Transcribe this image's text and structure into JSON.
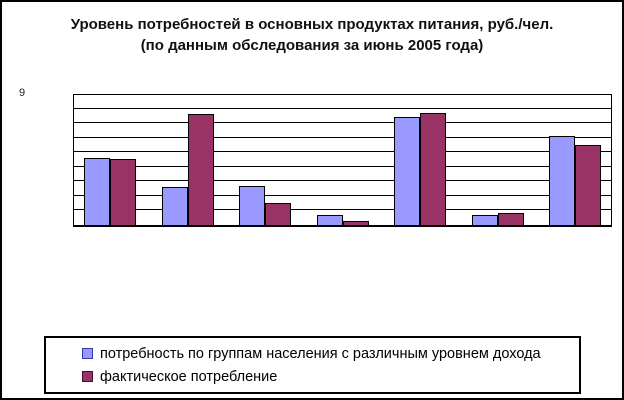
{
  "title": {
    "line1": "Уровень потребностей в основных продуктах питания, руб./чел.",
    "line2": "(по данным обследования за июнь 2005 года)"
  },
  "y_axis": {
    "top_label": "9"
  },
  "legend": {
    "items": [
      {
        "label": "потребность по группам населения с различным уровнем дохода",
        "color": "#9999FF"
      },
      {
        "label": "фактическое потребление",
        "color": "#993366"
      }
    ]
  },
  "chart_data": {
    "type": "bar",
    "title": "Уровень потребностей в основных продуктах питания, руб./чел. (по данным обследования за июнь 2005 года)",
    "categories": [
      "",
      "",
      "",
      "",
      "",
      "",
      ""
    ],
    "series": [
      {
        "name": "потребность по группам населения с различным уровнем дохода",
        "color": "#9999FF",
        "values": [
          4.6,
          2.6,
          2.7,
          0.7,
          7.4,
          0.7,
          6.1
        ]
      },
      {
        "name": "фактическое потребление",
        "color": "#993366",
        "values": [
          4.5,
          7.6,
          1.5,
          0.3,
          7.7,
          0.8,
          5.5
        ]
      }
    ],
    "xlabel": "",
    "ylabel": "",
    "ylim": [
      0,
      9
    ],
    "grid_step": 1,
    "grid": "horizontal",
    "legend_position": "bottom"
  }
}
